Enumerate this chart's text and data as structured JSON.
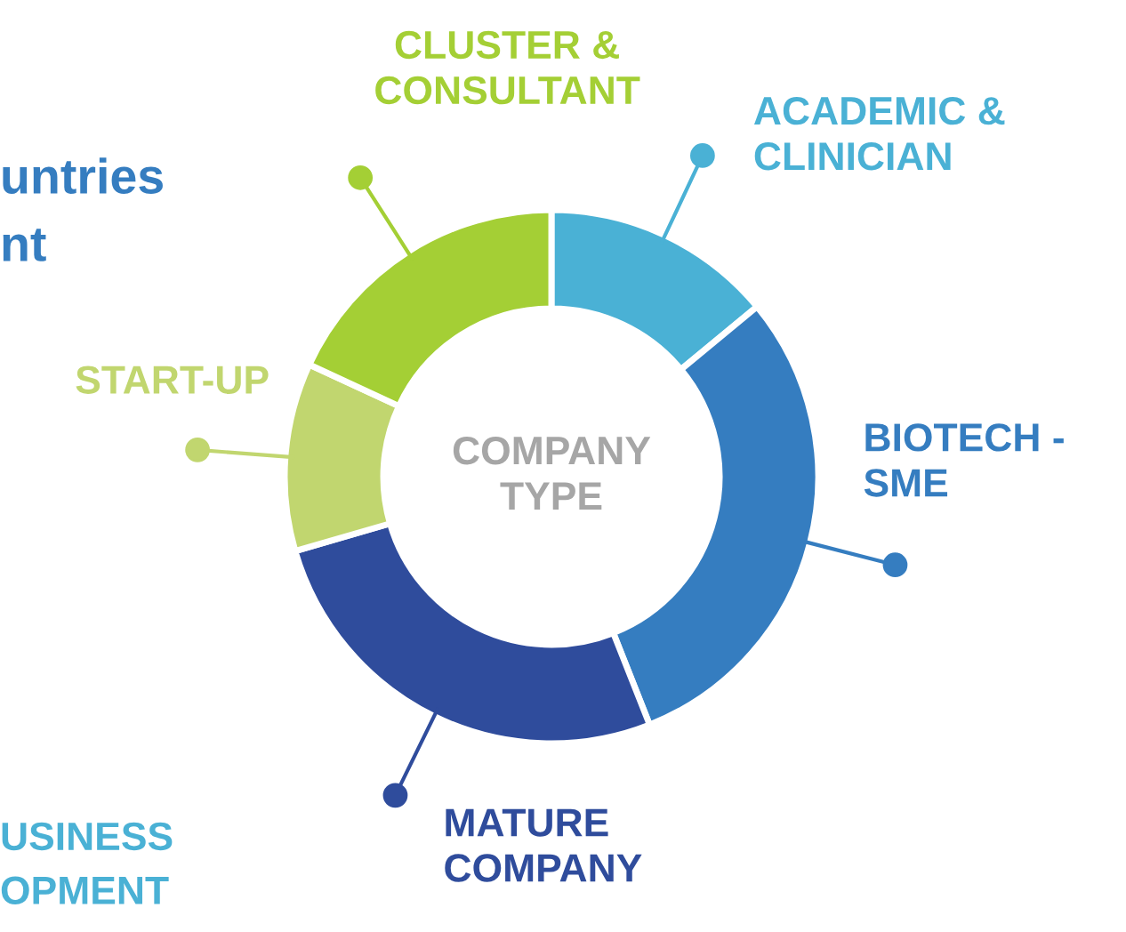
{
  "chart_data": {
    "type": "donut",
    "title": "COMPANY\nTYPE",
    "categories": [
      "ACADEMIC &\nCLINICIAN",
      "BIOTECH -\nSME",
      "MATURE\nCOMPANY",
      "START-UP",
      "CLUSTER &\nCONSULTANT"
    ],
    "values": [
      14,
      30,
      26.5,
      11.4,
      18.1
    ],
    "colors": [
      "#4ab1d5",
      "#357dc0",
      "#2f4c9c",
      "#c1d66f",
      "#a4cf35"
    ],
    "annotations": [
      "untries\nnt",
      "USINESS\nOPMENT"
    ]
  }
}
